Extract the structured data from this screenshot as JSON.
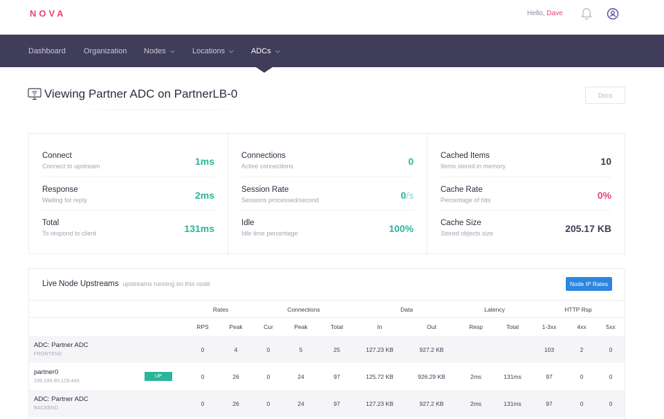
{
  "header": {
    "logo": "NOVA",
    "greeting": "Hello,",
    "user": "Dave"
  },
  "nav": [
    {
      "label": "Dashboard",
      "dropdown": false
    },
    {
      "label": "Organization",
      "dropdown": false
    },
    {
      "label": "Nodes",
      "dropdown": true
    },
    {
      "label": "Locations",
      "dropdown": true
    },
    {
      "label": "ADCs",
      "dropdown": true,
      "active": true
    }
  ],
  "page": {
    "title": "Viewing Partner ADC on PartnerLB-0",
    "docs_label": "Docs"
  },
  "stats": [
    [
      {
        "label": "Connect",
        "sub": "Connect to upstream",
        "value": "1ms",
        "color": "green"
      },
      {
        "label": "Response",
        "sub": "Waiting for reply",
        "value": "2ms",
        "color": "green"
      },
      {
        "label": "Total",
        "sub": "To respond to client",
        "value": "131ms",
        "color": "green"
      }
    ],
    [
      {
        "label": "Connections",
        "sub": "Active connections",
        "value": "0",
        "color": "green"
      },
      {
        "label": "Session Rate",
        "sub": "Sessions processed/second",
        "value": "0",
        "unit": "/s",
        "color": "green"
      },
      {
        "label": "Idle",
        "sub": "Idle time percentage",
        "value": "100%",
        "color": "green"
      }
    ],
    [
      {
        "label": "Cached Items",
        "sub": "Items stored in memory",
        "value": "10",
        "color": "dark"
      },
      {
        "label": "Cache Rate",
        "sub": "Percentage of hits",
        "value": "0%",
        "color": "red"
      },
      {
        "label": "Cache Size",
        "sub": "Stored objects size",
        "value": "205.17 KB",
        "color": "dark"
      }
    ]
  ],
  "upstreams": {
    "title": "Live Node Upstreams",
    "subtitle": "upstreams running on this node",
    "button": "Node IP Rates",
    "groups": [
      "Rates",
      "Connections",
      "Data",
      "Latency",
      "HTTP Rsp"
    ],
    "columns": [
      "RPS",
      "Peak",
      "Cur",
      "Peak",
      "Total",
      "In",
      "Out",
      "Resp",
      "Total",
      "1-3xx",
      "4xx",
      "5xx"
    ],
    "rows": [
      {
        "name": "ADC: Partner ADC",
        "sub": "FRONTEND",
        "badge": "",
        "cells": [
          "0",
          "4",
          "0",
          "5",
          "25",
          "127.23 KB",
          "927.2 KB",
          "",
          "",
          "103",
          "2",
          "0"
        ]
      },
      {
        "name": "partner0",
        "sub": "198.199.80.129:443",
        "badge": "UP",
        "cells": [
          "0",
          "26",
          "0",
          "24",
          "97",
          "125.72 KB",
          "926.29 KB",
          "2ms",
          "131ms",
          "97",
          "0",
          "0"
        ]
      },
      {
        "name": "ADC: Partner ADC",
        "sub": "BACKEND",
        "badge": "",
        "cells": [
          "0",
          "26",
          "0",
          "24",
          "97",
          "127.23 KB",
          "927.2 KB",
          "2ms",
          "131ms",
          "97",
          "0",
          "0"
        ]
      }
    ]
  }
}
